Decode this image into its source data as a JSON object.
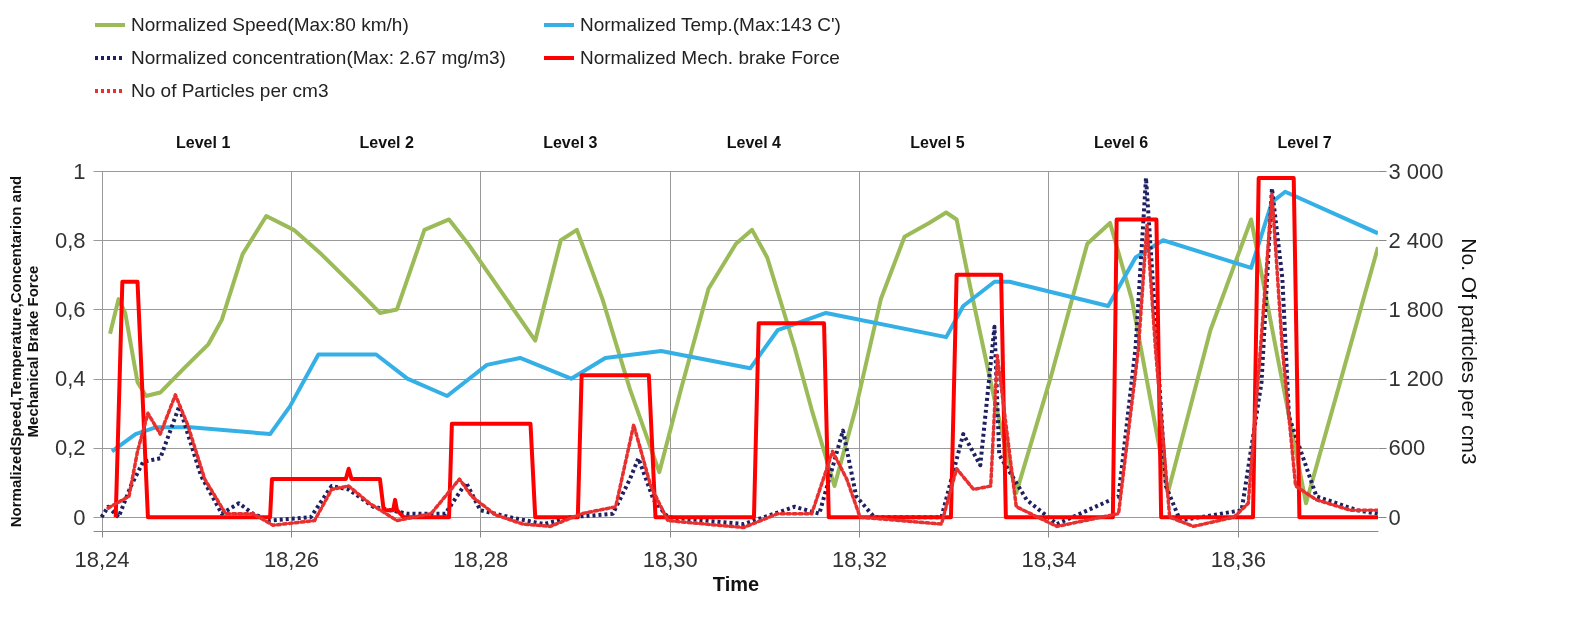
{
  "chart_data": {
    "type": "line",
    "xlabel": "Time",
    "ylabel": "NormalizedSpeed,Temperature,Concentarion and Mechanical Brake Force",
    "y2label": "No. Of particles per cm3",
    "xlim": [
      18.2391,
      18.3748
    ],
    "xticks": [
      {
        "value": 18.24,
        "label": "18,24"
      },
      {
        "value": 18.26,
        "label": "18,26"
      },
      {
        "value": 18.28,
        "label": "18,28"
      },
      {
        "value": 18.3,
        "label": "18,30"
      },
      {
        "value": 18.32,
        "label": "18,32"
      },
      {
        "value": 18.34,
        "label": "18,34"
      },
      {
        "value": 18.36,
        "label": "18,36"
      }
    ],
    "ylim": [
      -0.04,
      1
    ],
    "yticks": [
      0,
      {
        "value": 0.2,
        "label": "0,2"
      },
      {
        "value": 0.4,
        "label": "0,4"
      },
      {
        "value": 0.6,
        "label": "0,6"
      },
      {
        "value": 0.8,
        "label": "0,8"
      },
      1
    ],
    "y2lim": [
      -120,
      3000
    ],
    "y2ticks": [
      0,
      600,
      {
        "value": 1200,
        "label": "1 200"
      },
      {
        "value": 1800,
        "label": "1 800"
      },
      {
        "value": 2400,
        "label": "2 400"
      },
      {
        "value": 3000,
        "label": "3 000"
      }
    ],
    "grid": true,
    "legend": "top",
    "annotations": [
      "Level 1",
      "Level 2",
      "Level 3",
      "Level 4",
      "Level 5",
      "Level 6",
      "Level 7"
    ],
    "series": [
      {
        "name": "Normalized Speed(Max:80 km/h)",
        "color": "#9bbb59",
        "line_style": "solid",
        "x": [
          18.2409,
          18.2418,
          18.2425,
          18.2438,
          18.2447,
          18.2462,
          18.2487,
          18.2513,
          18.2527,
          18.2549,
          18.2574,
          18.2603,
          18.2632,
          18.2669,
          18.2694,
          18.2712,
          18.2741,
          18.2767,
          18.2787,
          18.2858,
          18.2885,
          18.2902,
          18.2929,
          18.2958,
          18.2989,
          18.3012,
          18.3041,
          18.307,
          18.3087,
          18.3103,
          18.3132,
          18.315,
          18.3174,
          18.3197,
          18.3223,
          18.3248,
          18.3274,
          18.3292,
          18.3303,
          18.3317,
          18.3343,
          18.3366,
          18.3402,
          18.3441,
          18.3465,
          18.3488,
          18.3526,
          18.3571,
          18.3614,
          18.364,
          18.3672,
          18.3708,
          18.3748
        ],
        "values": [
          0.53,
          0.63,
          0.59,
          0.39,
          0.35,
          0.36,
          0.43,
          0.5,
          0.57,
          0.76,
          0.87,
          0.83,
          0.76,
          0.66,
          0.59,
          0.6,
          0.83,
          0.86,
          0.79,
          0.51,
          0.8,
          0.83,
          0.63,
          0.37,
          0.13,
          0.37,
          0.66,
          0.79,
          0.83,
          0.75,
          0.49,
          0.31,
          0.09,
          0.32,
          0.63,
          0.81,
          0.85,
          0.88,
          0.86,
          0.67,
          0.34,
          0.07,
          0.4,
          0.79,
          0.85,
          0.63,
          0.07,
          0.54,
          0.86,
          0.49,
          0.04,
          0.39,
          0.78
        ]
      },
      {
        "name": "Normalized Temp.(Max:143 C')",
        "color": "#35b0e6",
        "line_style": "solid",
        "x": [
          18.2411,
          18.2436,
          18.2458,
          18.2494,
          18.2578,
          18.2599,
          18.2629,
          18.269,
          18.2723,
          18.2765,
          18.2807,
          18.2842,
          18.2896,
          18.2932,
          18.2991,
          18.3085,
          18.3114,
          18.3165,
          18.3292,
          18.331,
          18.3343,
          18.3359,
          18.3463,
          18.3492,
          18.3521,
          18.3614,
          18.3636,
          18.365,
          18.3748
        ],
        "values": [
          0.19,
          0.24,
          0.26,
          0.26,
          0.24,
          0.32,
          0.47,
          0.47,
          0.4,
          0.35,
          0.44,
          0.46,
          0.4,
          0.46,
          0.48,
          0.43,
          0.54,
          0.59,
          0.52,
          0.61,
          0.68,
          0.68,
          0.61,
          0.75,
          0.8,
          0.72,
          0.91,
          0.94,
          0.82
        ]
      },
      {
        "name": "Normalized concentration(Max: 2.67 mg/m3)",
        "color": "#1f2060",
        "line_style": "dotted",
        "x": [
          18.24,
          18.2407,
          18.2418,
          18.2431,
          18.2444,
          18.2462,
          18.2482,
          18.2505,
          18.2527,
          18.2545,
          18.256,
          18.2578,
          18.2621,
          18.2643,
          18.2661,
          18.2687,
          18.2723,
          18.2763,
          18.2785,
          18.28,
          18.2831,
          18.2867,
          18.2896,
          18.294,
          18.2958,
          18.2967,
          18.2983,
          18.2998,
          18.3078,
          18.3132,
          18.3158,
          18.3183,
          18.3197,
          18.3216,
          18.3287,
          18.331,
          18.3328,
          18.3343,
          18.3348,
          18.3377,
          18.3409,
          18.3474,
          18.3492,
          18.3503,
          18.351,
          18.3524,
          18.3539,
          18.3604,
          18.3625,
          18.3636,
          18.3647,
          18.3654,
          18.3683,
          18.3726,
          18.3748
        ],
        "values": [
          0,
          0.03,
          0,
          0.09,
          0.16,
          0.17,
          0.32,
          0.12,
          0.01,
          0.04,
          0.01,
          -0.01,
          0,
          0.09,
          0.08,
          0.03,
          0.01,
          0.01,
          0.1,
          0.02,
          0,
          -0.02,
          0,
          0.01,
          0.11,
          0.17,
          0.05,
          0,
          -0.02,
          0.03,
          0.01,
          0.25,
          0.06,
          0,
          0,
          0.24,
          0.15,
          0.55,
          0.18,
          0.05,
          -0.02,
          0.06,
          0.49,
          0.98,
          0.69,
          0.09,
          -0.01,
          0.02,
          0.39,
          0.95,
          0.69,
          0.29,
          0.06,
          0.02,
          0.01
        ]
      },
      {
        "name": "Normalized Mech. brake Force",
        "color": "#ff0000",
        "line_style": "solid",
        "x": [
          18.2415,
          18.2422,
          18.2438,
          18.2449,
          18.2578,
          18.258,
          18.2658,
          18.2661,
          18.2664,
          18.2694,
          18.2698,
          18.2708,
          18.271,
          18.2712,
          18.2719,
          18.2767,
          18.277,
          18.2853,
          18.2858,
          18.2903,
          18.2907,
          18.2978,
          18.2985,
          18.3089,
          18.3094,
          18.3163,
          18.3168,
          18.3297,
          18.3303,
          18.335,
          18.3355,
          18.3468,
          18.3472,
          18.3514,
          18.3519,
          18.3616,
          18.3622,
          18.3659,
          18.3665,
          18.3748
        ],
        "values": [
          0,
          0.68,
          0.68,
          0,
          0,
          0.11,
          0.11,
          0.14,
          0.11,
          0.11,
          0.02,
          0.02,
          0.05,
          0.02,
          0,
          0,
          0.27,
          0.27,
          0,
          0,
          0.41,
          0.41,
          0,
          0,
          0.56,
          0.56,
          0,
          0,
          0.7,
          0.7,
          0,
          0,
          0.86,
          0.86,
          0,
          0,
          0.98,
          0.98,
          0,
          0
        ]
      },
      {
        "name": "No of Particles per cm3",
        "color": "#e8312f",
        "line_style": "dotted",
        "axis": "y2",
        "x": [
          18.2407,
          18.2429,
          18.2438,
          18.2449,
          18.2462,
          18.2478,
          18.2491,
          18.2509,
          18.2531,
          18.256,
          18.2581,
          18.2625,
          18.2643,
          18.2661,
          18.2683,
          18.2712,
          18.2748,
          18.2778,
          18.2791,
          18.2816,
          18.2845,
          18.2874,
          18.2907,
          18.2943,
          18.2962,
          18.298,
          18.2998,
          18.3078,
          18.3114,
          18.315,
          18.3172,
          18.3187,
          18.3201,
          18.3287,
          18.3303,
          18.3321,
          18.3339,
          18.3346,
          18.3366,
          18.3409,
          18.3474,
          18.3495,
          18.3504,
          18.3513,
          18.3528,
          18.3553,
          18.3596,
          18.3611,
          18.3625,
          18.3636,
          18.3647,
          18.3661,
          18.3683,
          18.3719,
          18.3748
        ],
        "values": [
          80,
          180,
          570,
          900,
          720,
          1060,
          800,
          330,
          30,
          30,
          -70,
          -30,
          240,
          270,
          120,
          -30,
          30,
          330,
          180,
          20,
          -60,
          -80,
          30,
          90,
          800,
          270,
          -30,
          -90,
          30,
          30,
          570,
          330,
          0,
          -60,
          420,
          240,
          270,
          1400,
          90,
          -80,
          30,
          1460,
          2530,
          1460,
          0,
          -80,
          0,
          120,
          1580,
          2800,
          1460,
          270,
          150,
          60,
          60
        ]
      }
    ]
  }
}
